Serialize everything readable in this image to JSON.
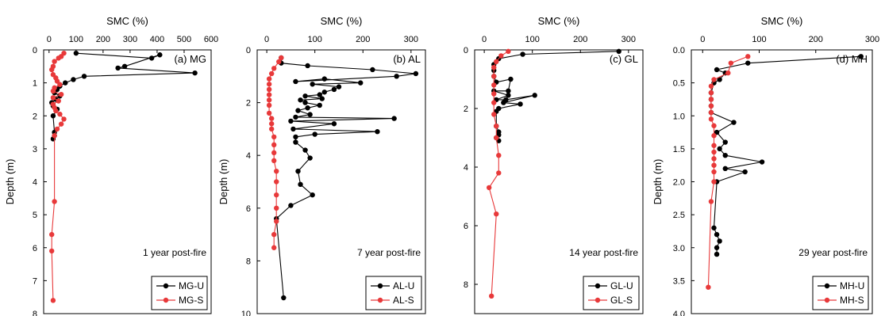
{
  "chart_data": [
    {
      "type": "line",
      "panel_label": "(a) MG",
      "annotation": "1 year post-fire",
      "xlabel": "SMC (%)",
      "ylabel": "Depth (m)",
      "xlim": [
        -20,
        600
      ],
      "ylim": [
        0,
        8
      ],
      "y_inverted": true,
      "x_axis_position": "top",
      "xticks": [
        0,
        100,
        200,
        300,
        400,
        500,
        600
      ],
      "yticks": [
        0,
        1,
        2,
        3,
        4,
        5,
        6,
        7,
        8
      ],
      "legend_position": "bottom-right",
      "series": [
        {
          "name": "MG-U",
          "color": "#000000",
          "points": [
            [
              100,
              0.1
            ],
            [
              380,
              0.25
            ],
            [
              410,
              0.15
            ],
            [
              280,
              0.5
            ],
            [
              255,
              0.55
            ],
            [
              540,
              0.7
            ],
            [
              130,
              0.8
            ],
            [
              90,
              0.9
            ],
            [
              60,
              1.0
            ],
            [
              40,
              1.1
            ],
            [
              30,
              1.2
            ],
            [
              20,
              1.3
            ],
            [
              40,
              1.4
            ],
            [
              25,
              1.5
            ],
            [
              10,
              1.6
            ],
            [
              15,
              1.7
            ],
            [
              30,
              1.8
            ],
            [
              15,
              2.0
            ],
            [
              20,
              2.5
            ],
            [
              20,
              2.6
            ],
            [
              15,
              2.7
            ]
          ]
        },
        {
          "name": "MG-S",
          "color": "#e8393a",
          "points": [
            [
              55,
              0.1
            ],
            [
              45,
              0.2
            ],
            [
              35,
              0.25
            ],
            [
              20,
              0.35
            ],
            [
              15,
              0.5
            ],
            [
              10,
              0.6
            ],
            [
              15,
              0.75
            ],
            [
              25,
              0.85
            ],
            [
              30,
              0.95
            ],
            [
              40,
              1.05
            ],
            [
              20,
              1.15
            ],
            [
              15,
              1.25
            ],
            [
              45,
              1.35
            ],
            [
              15,
              1.45
            ],
            [
              35,
              1.55
            ],
            [
              15,
              1.65
            ],
            [
              20,
              1.75
            ],
            [
              25,
              1.85
            ],
            [
              40,
              1.95
            ],
            [
              55,
              2.1
            ],
            [
              45,
              2.25
            ],
            [
              30,
              2.4
            ],
            [
              20,
              2.6
            ],
            [
              20,
              4.6
            ],
            [
              10,
              5.6
            ],
            [
              10,
              6.1
            ],
            [
              15,
              7.6
            ]
          ]
        }
      ]
    },
    {
      "type": "line",
      "panel_label": "(b) AL",
      "annotation": "7 year post-fire",
      "xlabel": "SMC (%)",
      "ylabel": "Depth (m)",
      "xlim": [
        -20,
        330
      ],
      "ylim": [
        0,
        10
      ],
      "y_inverted": true,
      "x_axis_position": "top",
      "xticks": [
        0,
        100,
        200,
        300
      ],
      "yticks": [
        0,
        2,
        4,
        6,
        8,
        10
      ],
      "legend_position": "bottom-right",
      "series": [
        {
          "name": "AL-U",
          "color": "#000000",
          "points": [
            [
              30,
              0.3
            ],
            [
              30,
              0.5
            ],
            [
              85,
              0.6
            ],
            [
              220,
              0.75
            ],
            [
              310,
              0.9
            ],
            [
              270,
              1.0
            ],
            [
              60,
              1.2
            ],
            [
              120,
              1.1
            ],
            [
              195,
              1.25
            ],
            [
              95,
              1.3
            ],
            [
              150,
              1.4
            ],
            [
              140,
              1.5
            ],
            [
              120,
              1.6
            ],
            [
              110,
              1.7
            ],
            [
              80,
              1.75
            ],
            [
              115,
              1.85
            ],
            [
              70,
              1.9
            ],
            [
              80,
              2.0
            ],
            [
              110,
              2.1
            ],
            [
              85,
              2.2
            ],
            [
              65,
              2.3
            ],
            [
              90,
              2.45
            ],
            [
              60,
              2.55
            ],
            [
              265,
              2.6
            ],
            [
              50,
              2.7
            ],
            [
              140,
              2.8
            ],
            [
              55,
              3.0
            ],
            [
              230,
              3.1
            ],
            [
              100,
              3.2
            ],
            [
              60,
              3.3
            ],
            [
              60,
              3.5
            ],
            [
              80,
              3.8
            ],
            [
              90,
              4.1
            ],
            [
              65,
              4.6
            ],
            [
              70,
              5.1
            ],
            [
              95,
              5.5
            ],
            [
              50,
              5.9
            ],
            [
              20,
              6.4
            ],
            [
              35,
              9.4
            ]
          ]
        },
        {
          "name": "AL-S",
          "color": "#e8393a",
          "points": [
            [
              30,
              0.3
            ],
            [
              25,
              0.45
            ],
            [
              15,
              0.7
            ],
            [
              10,
              0.9
            ],
            [
              5,
              1.1
            ],
            [
              5,
              1.3
            ],
            [
              5,
              1.5
            ],
            [
              5,
              1.7
            ],
            [
              5,
              1.9
            ],
            [
              5,
              2.1
            ],
            [
              5,
              2.4
            ],
            [
              10,
              2.6
            ],
            [
              10,
              2.8
            ],
            [
              10,
              3.0
            ],
            [
              15,
              3.3
            ],
            [
              15,
              3.6
            ],
            [
              15,
              3.9
            ],
            [
              15,
              4.2
            ],
            [
              20,
              4.6
            ],
            [
              20,
              5.0
            ],
            [
              20,
              5.5
            ],
            [
              20,
              6.0
            ],
            [
              20,
              6.5
            ],
            [
              15,
              7.0
            ],
            [
              15,
              7.5
            ]
          ]
        }
      ]
    },
    {
      "type": "line",
      "panel_label": "(c) GL",
      "annotation": "14 year post-fire",
      "xlabel": "SMC (%)",
      "ylabel": "",
      "xlim": [
        -20,
        330
      ],
      "ylim": [
        0,
        9
      ],
      "y_inverted": true,
      "x_axis_position": "top",
      "xticks": [
        0,
        100,
        200,
        300
      ],
      "yticks": [
        0,
        2,
        4,
        6,
        8
      ],
      "legend_position": "bottom-right",
      "series": [
        {
          "name": "GL-U",
          "color": "#000000",
          "points": [
            [
              280,
              0.05
            ],
            [
              80,
              0.15
            ],
            [
              30,
              0.3
            ],
            [
              20,
              0.5
            ],
            [
              20,
              0.7
            ],
            [
              20,
              0.9
            ],
            [
              25,
              1.1
            ],
            [
              55,
              1.0
            ],
            [
              50,
              1.4
            ],
            [
              20,
              1.4
            ],
            [
              50,
              1.55
            ],
            [
              25,
              1.7
            ],
            [
              45,
              1.7
            ],
            [
              105,
              1.55
            ],
            [
              40,
              1.8
            ],
            [
              75,
              1.85
            ],
            [
              30,
              2.0
            ],
            [
              25,
              2.1
            ],
            [
              25,
              2.6
            ],
            [
              30,
              2.8
            ],
            [
              30,
              2.9
            ],
            [
              25,
              3.0
            ],
            [
              30,
              3.1
            ]
          ]
        },
        {
          "name": "GL-S",
          "color": "#e8393a",
          "points": [
            [
              50,
              0.05
            ],
            [
              35,
              0.2
            ],
            [
              25,
              0.4
            ],
            [
              20,
              0.6
            ],
            [
              20,
              0.9
            ],
            [
              20,
              1.2
            ],
            [
              20,
              1.5
            ],
            [
              20,
              1.8
            ],
            [
              20,
              2.2
            ],
            [
              25,
              2.6
            ],
            [
              25,
              3.0
            ],
            [
              30,
              3.6
            ],
            [
              30,
              4.2
            ],
            [
              10,
              4.7
            ],
            [
              25,
              5.6
            ],
            [
              15,
              8.4
            ]
          ]
        }
      ]
    },
    {
      "type": "line",
      "panel_label": "(d) MH",
      "annotation": "29 year post-fire",
      "xlabel": "SMC (%)",
      "ylabel": "Depth (m)",
      "xlim": [
        -20,
        300
      ],
      "ylim": [
        0,
        4
      ],
      "y_inverted": true,
      "x_axis_position": "top",
      "xticks": [
        0,
        100,
        200,
        300
      ],
      "yticks": [
        0.0,
        0.5,
        1.0,
        1.5,
        2.0,
        2.5,
        3.0,
        3.5,
        4.0
      ],
      "legend_position": "bottom-right",
      "series": [
        {
          "name": "MH-U",
          "color": "#000000",
          "points": [
            [
              280,
              0.1
            ],
            [
              80,
              0.2
            ],
            [
              25,
              0.3
            ],
            [
              40,
              0.35
            ],
            [
              30,
              0.45
            ],
            [
              20,
              0.5
            ],
            [
              15,
              0.65
            ],
            [
              15,
              0.75
            ],
            [
              15,
              0.85
            ],
            [
              15,
              0.95
            ],
            [
              55,
              1.1
            ],
            [
              25,
              1.25
            ],
            [
              40,
              1.4
            ],
            [
              30,
              1.5
            ],
            [
              40,
              1.6
            ],
            [
              105,
              1.7
            ],
            [
              40,
              1.8
            ],
            [
              75,
              1.85
            ],
            [
              25,
              2.0
            ],
            [
              20,
              2.7
            ],
            [
              25,
              2.8
            ],
            [
              30,
              2.9
            ],
            [
              25,
              3.0
            ],
            [
              25,
              3.1
            ]
          ]
        },
        {
          "name": "MH-S",
          "color": "#e8393a",
          "points": [
            [
              80,
              0.1
            ],
            [
              50,
              0.2
            ],
            [
              45,
              0.35
            ],
            [
              20,
              0.45
            ],
            [
              15,
              0.55
            ],
            [
              15,
              0.65
            ],
            [
              15,
              0.75
            ],
            [
              15,
              0.85
            ],
            [
              15,
              0.95
            ],
            [
              15,
              1.05
            ],
            [
              20,
              1.15
            ],
            [
              20,
              1.3
            ],
            [
              20,
              1.45
            ],
            [
              20,
              1.55
            ],
            [
              20,
              1.65
            ],
            [
              20,
              1.75
            ],
            [
              20,
              1.85
            ],
            [
              20,
              2.0
            ],
            [
              15,
              2.3
            ],
            [
              10,
              3.6
            ]
          ]
        }
      ]
    }
  ]
}
